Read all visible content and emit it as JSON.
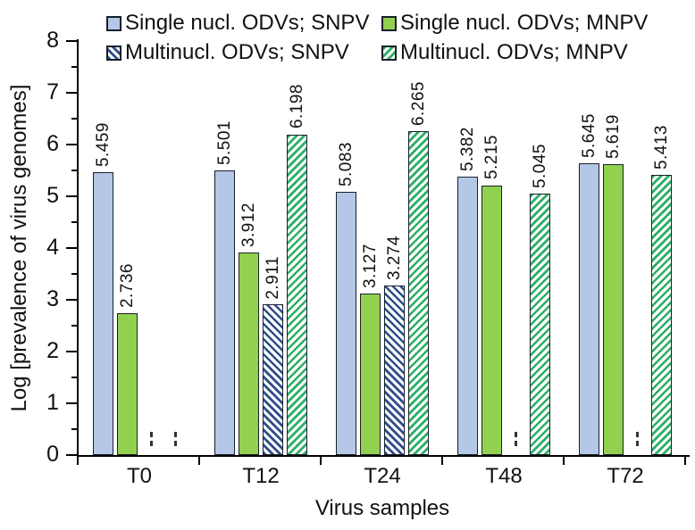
{
  "chart_data": {
    "type": "bar",
    "title": "",
    "xlabel": "Virus samples",
    "ylabel": "Log [prevalence of virus genomes]",
    "ylim": [
      0,
      8
    ],
    "ytick_step": 1,
    "yminor_step": 0.5,
    "ytick_labels": [
      "0",
      "1",
      "2",
      "3",
      "4",
      "5",
      "6",
      "7",
      "8"
    ],
    "grid": false,
    "legend_position": "top",
    "value_labels_rotated": true,
    "value_label_decimals": 3,
    "null_marker": "small-dashed-tick",
    "categories": [
      "T0",
      "T12",
      "T24",
      "T48",
      "T72"
    ],
    "series": [
      {
        "name": "Single nucl. ODVs; SNPV",
        "fill": "solid-0",
        "color": "#b4c7e7",
        "values": [
          5.459,
          5.501,
          5.083,
          5.382,
          5.645
        ]
      },
      {
        "name": "Single nucl. ODVs; MNPV",
        "fill": "solid-1",
        "color": "#92d050",
        "values": [
          2.736,
          3.912,
          3.127,
          5.215,
          5.619
        ]
      },
      {
        "name": "Multinucl. ODVs; SNPV",
        "fill": "hatch-backslash",
        "color": "#2e4c8c",
        "values": [
          null,
          2.911,
          3.274,
          null,
          null
        ]
      },
      {
        "name": "Multinucl. ODVs; MNPV",
        "fill": "hatch-slash",
        "color": "#2bae66",
        "values": [
          null,
          6.198,
          6.265,
          5.045,
          5.413
        ]
      }
    ],
    "bar_border_color": "#17202a"
  }
}
